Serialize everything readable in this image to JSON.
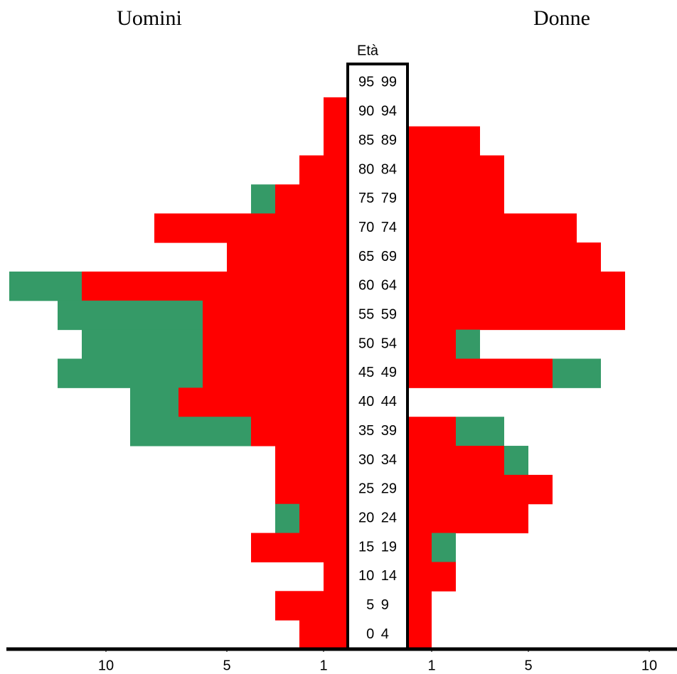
{
  "chart_data": {
    "type": "pyramid",
    "axis_title": "Età",
    "categories": [
      "95 99",
      "90 94",
      "85 89",
      "80 84",
      "75 79",
      "70 74",
      "65 69",
      "60 64",
      "55 59",
      "50 54",
      "45 49",
      "40 44",
      "35 39",
      "30 34",
      "25 29",
      "20 24",
      "15 19",
      "10 14",
      "5 9",
      "0 4"
    ],
    "left": {
      "title": "Uomini",
      "xlim": [
        0,
        14
      ],
      "xticks": [
        1,
        5,
        10
      ],
      "series": [
        {
          "color": "#ff0000",
          "values": [
            0,
            1,
            1,
            2,
            3,
            8,
            5,
            11,
            6,
            6,
            6,
            7,
            4,
            3,
            3,
            2,
            4,
            1,
            3,
            2
          ]
        },
        {
          "color": "#359a67",
          "values": [
            0,
            0,
            0,
            0,
            1,
            0,
            0,
            3,
            6,
            5,
            6,
            2,
            5,
            0,
            0,
            1,
            0,
            0,
            0,
            0
          ]
        }
      ]
    },
    "right": {
      "title": "Donne",
      "xlim": [
        0,
        11
      ],
      "xticks": [
        1,
        5,
        10
      ],
      "series": [
        {
          "color": "#ff0000",
          "values": [
            0,
            0,
            3,
            4,
            4,
            7,
            8,
            9,
            9,
            2,
            6,
            0,
            2,
            4,
            6,
            5,
            1,
            2,
            1,
            1
          ]
        },
        {
          "color": "#359a67",
          "values": [
            0,
            0,
            0,
            0,
            0,
            0,
            0,
            0,
            0,
            1,
            2,
            0,
            2,
            1,
            0,
            0,
            1,
            0,
            0,
            0
          ]
        }
      ]
    }
  }
}
